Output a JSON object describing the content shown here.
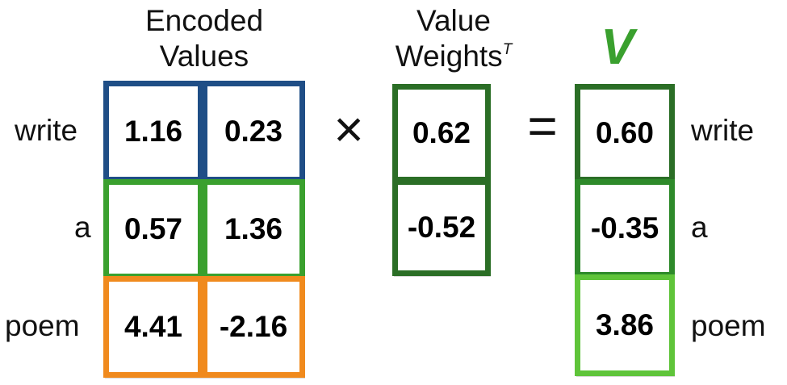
{
  "headers": {
    "encoded_values": [
      "Encoded",
      "Values"
    ],
    "value_weights": "Value",
    "value_weights_line2": "Weights",
    "value_weights_sup": "T",
    "v_title": "V"
  },
  "row_labels": [
    "write",
    "a",
    "poem"
  ],
  "encoded_values": [
    [
      "1.16",
      "0.23"
    ],
    [
      "0.57",
      "1.36"
    ],
    [
      "4.41",
      "-2.16"
    ]
  ],
  "value_weights": [
    "0.62",
    "-0.52"
  ],
  "v_output": [
    "0.60",
    "-0.35",
    "3.86"
  ],
  "operators": {
    "times": "×",
    "equals": "="
  },
  "colors": {
    "row_write": "#1f4e86",
    "row_a": "#3aa02e",
    "row_poem": "#f08a1d",
    "weights": "#2b6e26",
    "v_title": "#3aa02e",
    "v_write": "#2b6e26",
    "v_a": "#2e8a2a",
    "v_poem": "#5fc43a"
  }
}
